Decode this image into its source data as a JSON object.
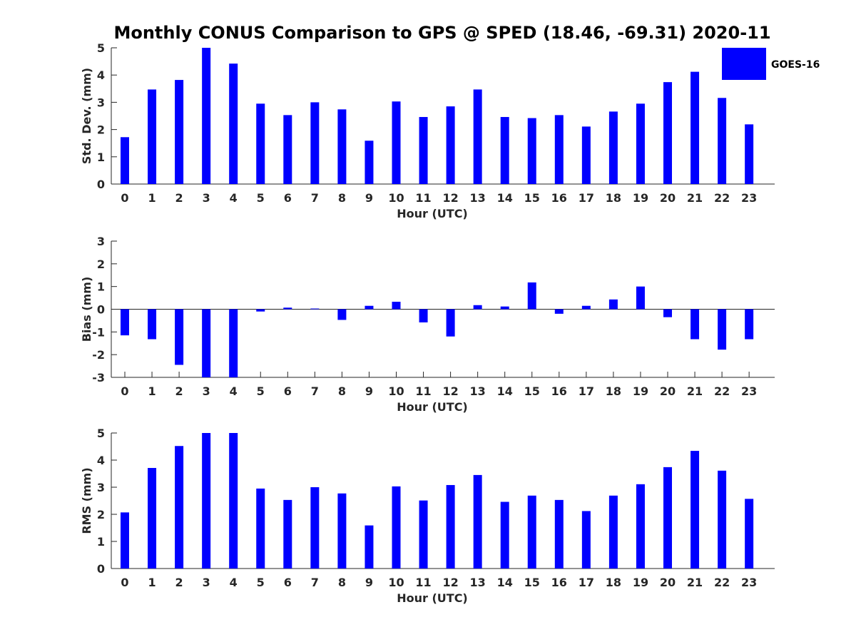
{
  "title": "Monthly CONUS Comparison to GPS @ SPED (18.46, -69.31) 2020-11",
  "series_color": "#0000ff",
  "legend": {
    "label": "GOES-16",
    "placement": "top-right"
  },
  "chart_data": [
    {
      "type": "bar",
      "xlabel": "Hour (UTC)",
      "ylabel": "Std. Dev. (mm)",
      "ylim": [
        0,
        5
      ],
      "yticks": [
        0,
        1,
        2,
        3,
        4,
        5
      ],
      "categories": [
        "0",
        "1",
        "2",
        "3",
        "4",
        "5",
        "6",
        "7",
        "8",
        "9",
        "10",
        "11",
        "12",
        "13",
        "14",
        "15",
        "16",
        "17",
        "18",
        "19",
        "20",
        "21",
        "22",
        "23"
      ],
      "series": [
        {
          "name": "GOES-16",
          "values": [
            1.72,
            3.47,
            3.82,
            5.0,
            4.42,
            2.95,
            2.53,
            3.0,
            2.74,
            1.59,
            3.03,
            2.46,
            2.85,
            3.47,
            2.46,
            2.42,
            2.53,
            2.11,
            2.66,
            2.95,
            3.74,
            4.12,
            3.16,
            2.19
          ]
        }
      ]
    },
    {
      "type": "bar",
      "xlabel": "Hour (UTC)",
      "ylabel": "Bias (mm)",
      "ylim": [
        -3,
        3
      ],
      "yticks": [
        -3,
        -2,
        -1,
        0,
        1,
        2,
        3
      ],
      "categories": [
        "0",
        "1",
        "2",
        "3",
        "4",
        "5",
        "6",
        "7",
        "8",
        "9",
        "10",
        "11",
        "12",
        "13",
        "14",
        "15",
        "16",
        "17",
        "18",
        "19",
        "20",
        "21",
        "22",
        "23"
      ],
      "series": [
        {
          "name": "GOES-16",
          "values": [
            -1.15,
            -1.32,
            -2.45,
            -3.0,
            -3.0,
            -0.1,
            0.07,
            0.03,
            -0.47,
            0.15,
            0.33,
            -0.58,
            -1.2,
            0.18,
            0.12,
            1.18,
            -0.2,
            0.15,
            0.43,
            1.0,
            -0.35,
            -1.32,
            -1.78,
            -1.32
          ]
        }
      ]
    },
    {
      "type": "bar",
      "xlabel": "Hour (UTC)",
      "ylabel": "RMS (mm)",
      "ylim": [
        0,
        5
      ],
      "yticks": [
        0,
        1,
        2,
        3,
        4,
        5
      ],
      "categories": [
        "0",
        "1",
        "2",
        "3",
        "4",
        "5",
        "6",
        "7",
        "8",
        "9",
        "10",
        "11",
        "12",
        "13",
        "14",
        "15",
        "16",
        "17",
        "18",
        "19",
        "20",
        "21",
        "22",
        "23"
      ],
      "series": [
        {
          "name": "GOES-16",
          "values": [
            2.07,
            3.71,
            4.52,
            5.0,
            5.0,
            2.95,
            2.53,
            3.0,
            2.77,
            1.59,
            3.03,
            2.51,
            3.08,
            3.45,
            2.46,
            2.69,
            2.53,
            2.12,
            2.69,
            3.11,
            3.74,
            4.34,
            3.61,
            2.57
          ]
        }
      ]
    }
  ]
}
